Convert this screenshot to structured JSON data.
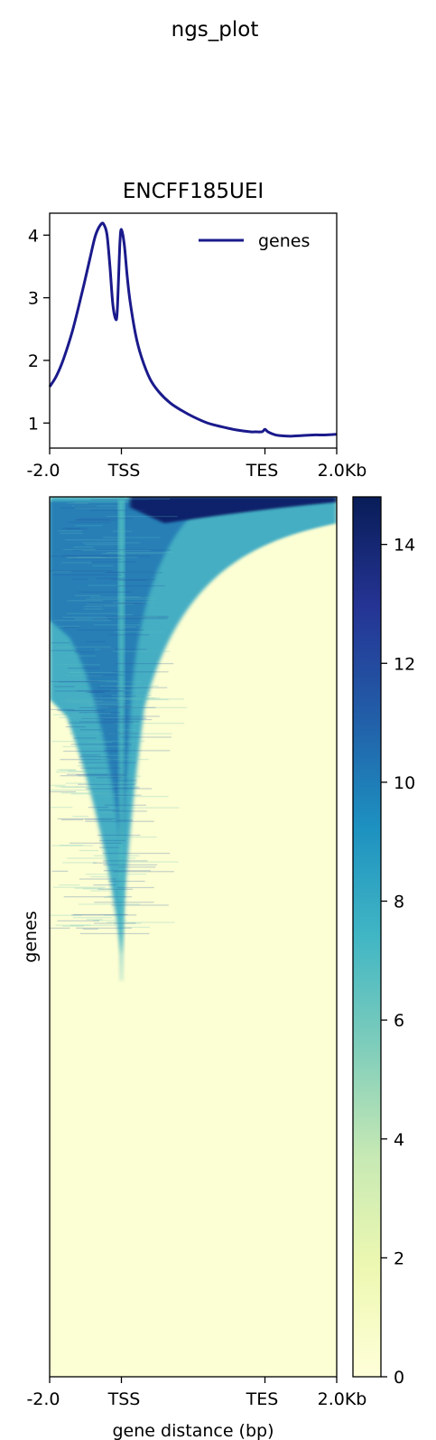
{
  "figure": {
    "suptitle": "ngs_plot"
  },
  "chart_data": [
    {
      "type": "line",
      "title": "ENCFF185UEI",
      "xlabel": "",
      "ylabel": "",
      "x_tick_labels": [
        "-2.0",
        "TSS",
        "TES",
        "2.0Kb"
      ],
      "ylim": [
        0.6,
        4.35
      ],
      "y_ticks": [
        1,
        2,
        3,
        4
      ],
      "legend": "top-right",
      "series": [
        {
          "name": "genes",
          "color": "#1a1a8c",
          "x": [
            0.0,
            0.02,
            0.04,
            0.06,
            0.08,
            0.1,
            0.12,
            0.14,
            0.16,
            0.18,
            0.19,
            0.2,
            0.21,
            0.22,
            0.23,
            0.235,
            0.24,
            0.245,
            0.25,
            0.26,
            0.27,
            0.28,
            0.3,
            0.32,
            0.35,
            0.38,
            0.42,
            0.46,
            0.5,
            0.55,
            0.6,
            0.65,
            0.7,
            0.72,
            0.74,
            0.75,
            0.76,
            0.78,
            0.8,
            0.84,
            0.88,
            0.92,
            0.96,
            1.0
          ],
          "y": [
            1.58,
            1.72,
            1.92,
            2.18,
            2.48,
            2.84,
            3.22,
            3.62,
            4.0,
            4.18,
            4.16,
            4.0,
            3.5,
            2.9,
            2.66,
            2.75,
            3.3,
            3.9,
            4.09,
            3.85,
            3.35,
            2.95,
            2.4,
            2.05,
            1.7,
            1.5,
            1.32,
            1.2,
            1.1,
            1.0,
            0.94,
            0.89,
            0.86,
            0.86,
            0.86,
            0.9,
            0.86,
            0.82,
            0.8,
            0.79,
            0.8,
            0.81,
            0.81,
            0.82
          ]
        }
      ]
    },
    {
      "type": "heatmap",
      "xlabel": "gene distance (bp)",
      "ylabel": "genes",
      "x_tick_labels": [
        "-2.0",
        "TSS",
        "TES",
        "2.0Kb"
      ],
      "colorbar": {
        "range": [
          0,
          14.8
        ],
        "ticks": [
          0,
          2,
          4,
          6,
          8,
          10,
          12,
          14
        ],
        "colormap": [
          "#ffffd9",
          "#edf8b1",
          "#c7e9b4",
          "#7fcdbb",
          "#41b6c4",
          "#1d91c0",
          "#225ea8",
          "#253494",
          "#081d58"
        ]
      }
    }
  ]
}
